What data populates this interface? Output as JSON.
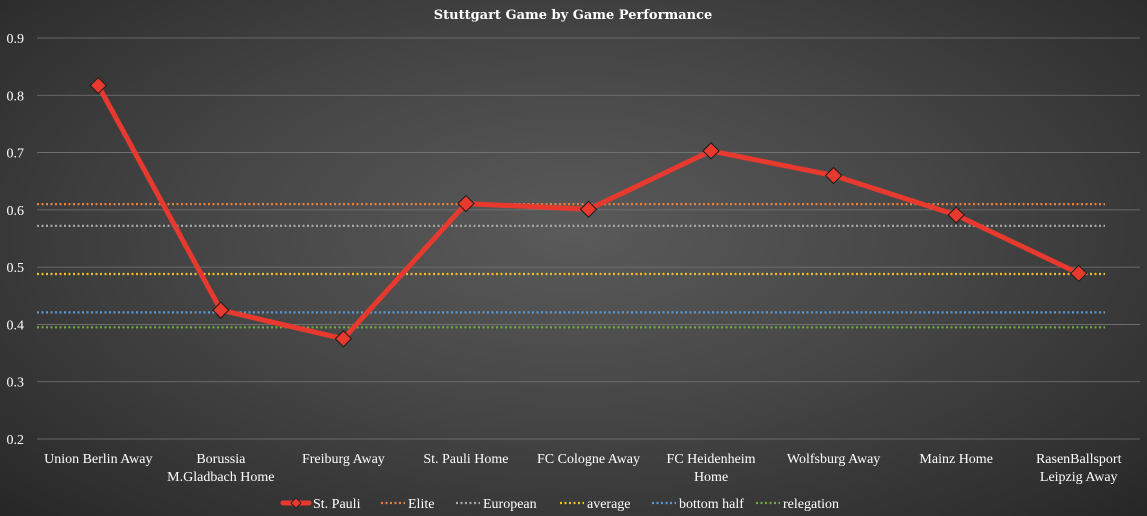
{
  "chart_data": {
    "type": "line",
    "title": "Stuttgart Game by Game Performance",
    "xlabel": "",
    "ylabel": "",
    "ylim": [
      0.2,
      0.9
    ],
    "yticks": [
      "0.2",
      "0.3",
      "0.4",
      "0.5",
      "0.6",
      "0.7",
      "0.8",
      "0.9"
    ],
    "grid": true,
    "legend_position": "bottom",
    "categories": [
      [
        "Union Berlin Away"
      ],
      [
        "Borussia",
        "M.Gladbach Home"
      ],
      [
        "Freiburg Away"
      ],
      [
        "St. Pauli Home"
      ],
      [
        "FC Cologne Away"
      ],
      [
        "FC Heidenheim",
        "Home"
      ],
      [
        "Wolfsburg Away"
      ],
      [
        "Mainz Home"
      ],
      [
        "RasenBallsport",
        "Leipzig Away"
      ]
    ],
    "series": [
      {
        "name": "St. Pauli",
        "values": [
          0.817,
          0.425,
          0.375,
          0.611,
          0.601,
          0.703,
          0.66,
          0.591,
          0.489
        ],
        "color": "#e8392f",
        "style": "line-diamond"
      }
    ],
    "reference_lines": [
      {
        "name": "Elite",
        "value": 0.61,
        "color": "#e9803e"
      },
      {
        "name": "European",
        "value": 0.572,
        "color": "#a6a6a6"
      },
      {
        "name": "average",
        "value": 0.488,
        "color": "#f0c02c"
      },
      {
        "name": "bottom half",
        "value": 0.421,
        "color": "#5b9bd5"
      },
      {
        "name": "relegation",
        "value": 0.395,
        "color": "#70ad47"
      }
    ]
  }
}
